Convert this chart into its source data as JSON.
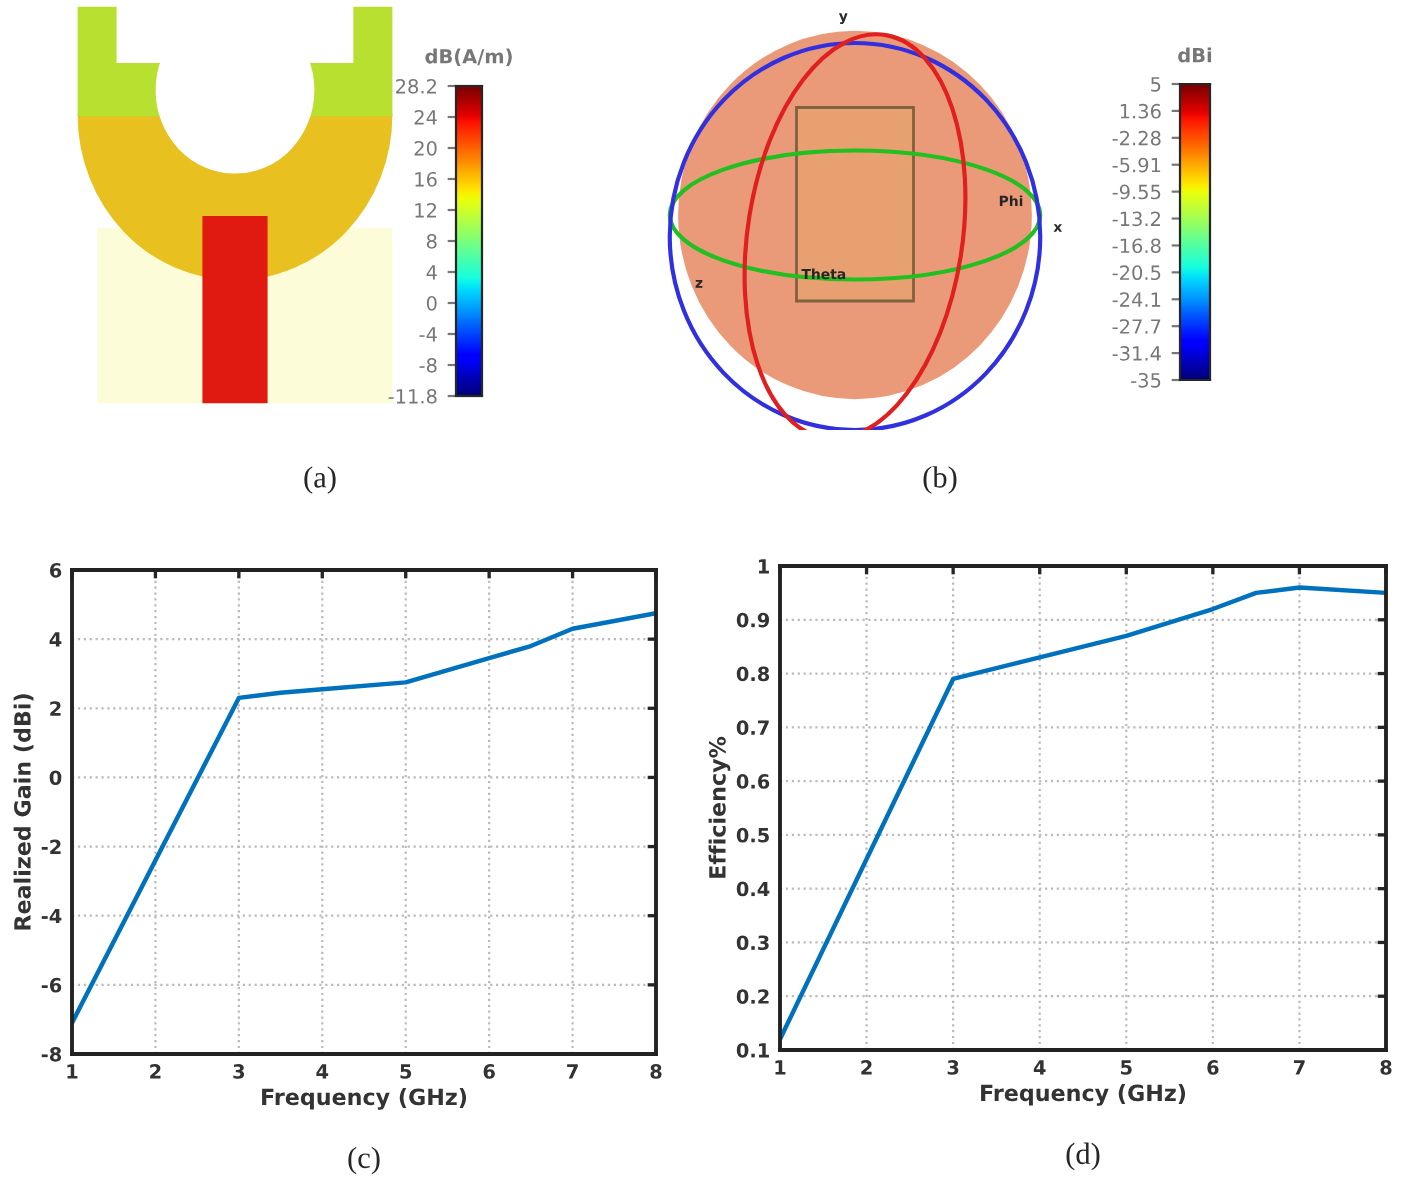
{
  "chart_data": [
    {
      "type": "other",
      "annotations": [
        "dB(A/m)",
        "28.2",
        "24",
        "20",
        "16",
        "12",
        "8",
        "4",
        "0",
        "-4",
        "-8",
        "-11.8",
        "(a)"
      ]
    },
    {
      "type": "other",
      "annotations": [
        "dBi",
        "5",
        "1.36",
        "-2.28",
        "-5.91",
        "-9.55",
        "-13.2",
        "-16.8",
        "-20.5",
        "-24.1",
        "-27.7",
        "-31.4",
        "-35",
        "y",
        "x",
        "z",
        "Phi",
        "Theta",
        "(b)"
      ]
    },
    {
      "type": "line",
      "xlabel": "Frequency (GHz)",
      "ylabel": "Realized Gain (dBi)",
      "x": [
        1,
        3,
        3.5,
        4,
        5,
        6,
        6.5,
        7,
        8
      ],
      "series": [
        {
          "color": "#0072bd",
          "values": [
            -7.1,
            2.3,
            2.45,
            2.55,
            2.75,
            3.45,
            3.8,
            4.3,
            4.75
          ]
        }
      ],
      "xlim": [
        1,
        8
      ],
      "xticks": [
        1,
        2,
        3,
        4,
        5,
        6,
        7,
        8
      ],
      "ylim": [
        -8,
        6
      ],
      "yticks": [
        -8,
        -6,
        -4,
        -2,
        0,
        2,
        4,
        6
      ],
      "grid": true,
      "annotations": [
        "(c)"
      ]
    },
    {
      "type": "line",
      "xlabel": "Frequency (GHz)",
      "ylabel": "Efficiency%",
      "x": [
        1,
        3,
        4,
        5,
        6,
        6.5,
        7,
        8
      ],
      "series": [
        {
          "color": "#0072bd",
          "values": [
            0.12,
            0.79,
            0.83,
            0.87,
            0.92,
            0.95,
            0.96,
            0.95
          ]
        }
      ],
      "xlim": [
        1,
        8
      ],
      "xticks": [
        1,
        2,
        3,
        4,
        5,
        6,
        7,
        8
      ],
      "ylim": [
        0.1,
        1
      ],
      "yticks": [
        0.1,
        0.2,
        0.3,
        0.4,
        0.5,
        0.6,
        0.7,
        0.8,
        0.9,
        1
      ],
      "grid": true,
      "annotations": [
        "(d)"
      ]
    }
  ]
}
